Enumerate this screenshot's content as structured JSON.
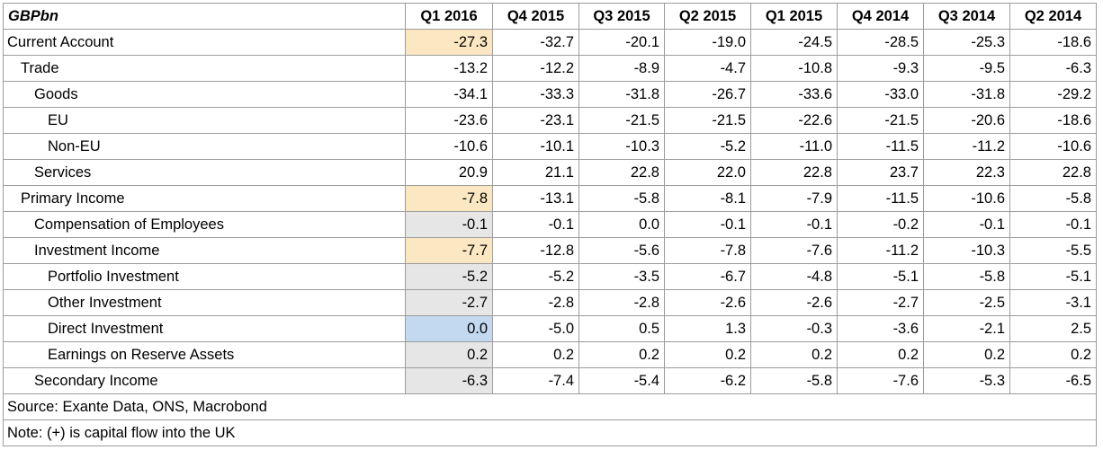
{
  "chart_data": {
    "type": "table",
    "corner_label": "GBPbn",
    "columns": [
      "Q1 2016",
      "Q4 2015",
      "Q3 2015",
      "Q2 2015",
      "Q1 2015",
      "Q4 2014",
      "Q3 2014",
      "Q2 2014"
    ],
    "rows": [
      {
        "label": "Current Account",
        "level": 0,
        "highlight": "#fbe8c2",
        "values": [
          "-27.3",
          "-32.7",
          "-20.1",
          "-19.0",
          "-24.5",
          "-28.5",
          "-25.3",
          "-18.6"
        ]
      },
      {
        "label": "Trade",
        "level": 1,
        "highlight": "",
        "values": [
          "-13.2",
          "-12.2",
          "-8.9",
          "-4.7",
          "-10.8",
          "-9.3",
          "-9.5",
          "-6.3"
        ]
      },
      {
        "label": "Goods",
        "level": 2,
        "highlight": "",
        "values": [
          "-34.1",
          "-33.3",
          "-31.8",
          "-26.7",
          "-33.6",
          "-33.0",
          "-31.8",
          "-29.2"
        ]
      },
      {
        "label": "EU",
        "level": 3,
        "highlight": "",
        "values": [
          "-23.6",
          "-23.1",
          "-21.5",
          "-21.5",
          "-22.6",
          "-21.5",
          "-20.6",
          "-18.6"
        ]
      },
      {
        "label": "Non-EU",
        "level": 3,
        "highlight": "",
        "values": [
          "-10.6",
          "-10.1",
          "-10.3",
          "-5.2",
          "-11.0",
          "-11.5",
          "-11.2",
          "-10.6"
        ]
      },
      {
        "label": "Services",
        "level": 2,
        "highlight": "",
        "values": [
          "20.9",
          "21.1",
          "22.8",
          "22.0",
          "22.8",
          "23.7",
          "22.3",
          "22.8"
        ]
      },
      {
        "label": "Primary Income",
        "level": 1,
        "highlight": "#fbe8c2",
        "values": [
          "-7.8",
          "-13.1",
          "-5.8",
          "-8.1",
          "-7.9",
          "-11.5",
          "-10.6",
          "-5.8"
        ]
      },
      {
        "label": "Compensation of Employees",
        "level": 2,
        "highlight": "#e6e6e6",
        "values": [
          "-0.1",
          "-0.1",
          "0.0",
          "-0.1",
          "-0.1",
          "-0.2",
          "-0.1",
          "-0.1"
        ]
      },
      {
        "label": "Investment Income",
        "level": 2,
        "highlight": "#fbe8c2",
        "values": [
          "-7.7",
          "-12.8",
          "-5.6",
          "-7.8",
          "-7.6",
          "-11.2",
          "-10.3",
          "-5.5"
        ]
      },
      {
        "label": "Portfolio Investment",
        "level": 3,
        "highlight": "#e6e6e6",
        "values": [
          "-5.2",
          "-5.2",
          "-3.5",
          "-6.7",
          "-4.8",
          "-5.1",
          "-5.8",
          "-5.1"
        ]
      },
      {
        "label": "Other Investment",
        "level": 3,
        "highlight": "#e6e6e6",
        "values": [
          "-2.7",
          "-2.8",
          "-2.8",
          "-2.6",
          "-2.6",
          "-2.7",
          "-2.5",
          "-3.1"
        ]
      },
      {
        "label": "Direct Investment",
        "level": 3,
        "highlight": "#c3d9ef",
        "values": [
          "0.0",
          "-5.0",
          "0.5",
          "1.3",
          "-0.3",
          "-3.6",
          "-2.1",
          "2.5"
        ]
      },
      {
        "label": "Earnings on Reserve Assets",
        "level": 3,
        "highlight": "#e6e6e6",
        "values": [
          "0.2",
          "0.2",
          "0.2",
          "0.2",
          "0.2",
          "0.2",
          "0.2",
          "0.2"
        ]
      },
      {
        "label": "Secondary Income",
        "level": 2,
        "highlight": "#e6e6e6",
        "values": [
          "-6.3",
          "-7.4",
          "-5.4",
          "-6.2",
          "-5.8",
          "-7.6",
          "-5.3",
          "-6.5"
        ]
      }
    ],
    "footnotes": [
      "Source: Exante Data, ONS, Macrobond",
      "Note: (+) is capital flow into the UK"
    ]
  }
}
